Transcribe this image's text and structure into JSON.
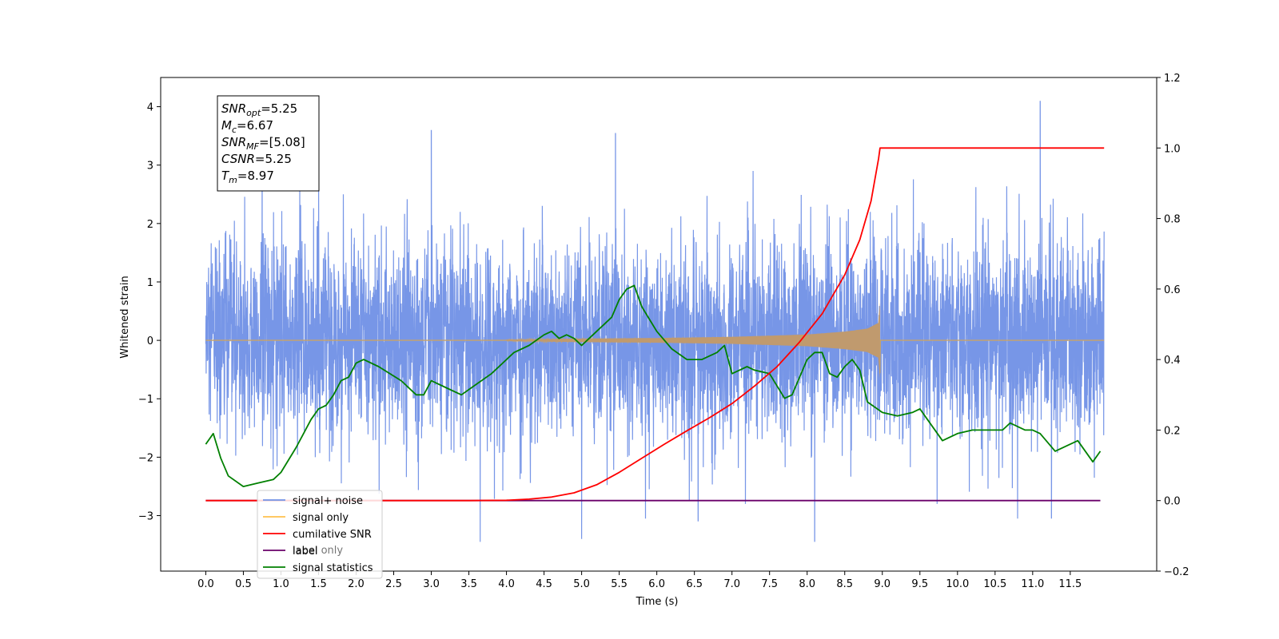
{
  "chart_data": {
    "type": "line",
    "xlabel": "Time (s)",
    "ylabel": "Whitened strain",
    "xlim": [
      -0.6,
      12.65
    ],
    "ylim": [
      -3.95,
      4.5
    ],
    "y2lim": [
      -0.2,
      1.2
    ],
    "grid": false,
    "legend_placement": "lower-left",
    "x_ticks": [
      "0.0",
      "0.5",
      "1.0",
      "1.5",
      "2.0",
      "2.5",
      "3.0",
      "3.5",
      "4.0",
      "4.5",
      "5.0",
      "5.5",
      "6.0",
      "6.5",
      "7.0",
      "7.5",
      "8.0",
      "8.5",
      "9.0",
      "9.5",
      "10.0",
      "10.5",
      "11.0",
      "11.5"
    ],
    "x_tick_values": [
      0,
      0.5,
      1,
      1.5,
      2,
      2.5,
      3,
      3.5,
      4,
      4.5,
      5,
      5.5,
      6,
      6.5,
      7,
      7.5,
      8,
      8.5,
      9,
      9.5,
      10,
      10.5,
      11,
      11.5
    ],
    "y_ticks": [
      "−3",
      "−2",
      "−1",
      "0",
      "1",
      "2",
      "3",
      "4"
    ],
    "y_tick_values": [
      -3,
      -2,
      -1,
      0,
      1,
      2,
      3,
      4
    ],
    "y2_ticks": [
      "−0.2",
      "0.0",
      "0.2",
      "0.4",
      "0.6",
      "0.8",
      "1.0",
      "1.2"
    ],
    "y2_tick_values": [
      -0.2,
      0,
      0.2,
      0.4,
      0.6,
      0.8,
      1.0,
      1.2
    ],
    "legend": [
      {
        "label": "signal+ noise",
        "color": "#7090e6"
      },
      {
        "label": "signal only",
        "color": "#ffc14d"
      },
      {
        "label": "cumilative SNR",
        "color": "#ff0000"
      },
      {
        "label": "label",
        "color": "#6a006a"
      },
      {
        "label": "signal statistics",
        "color": "#008000"
      }
    ],
    "legend_overlap_text": "label only",
    "stats_box": [
      {
        "main": "SNR",
        "sub": "opt",
        "value": "=5.25"
      },
      {
        "main": "M",
        "sub": "c",
        "value": "=6.67"
      },
      {
        "main": "SNR",
        "sub": "MF",
        "value": "=[5.08]"
      },
      {
        "main": "CSNR",
        "sub": "",
        "value": "=5.25"
      },
      {
        "main": "T",
        "sub": "m",
        "value": "=8.97"
      }
    ],
    "series": [
      {
        "name": "signal+ noise",
        "axis": "left",
        "color": "#7090e6",
        "x_range": [
          0,
          11.95
        ],
        "noise_amplitude_sd": 1.0,
        "notable_spikes": [
          [
            0.75,
            2.85
          ],
          [
            1.25,
            2.6
          ],
          [
            3.0,
            3.6
          ],
          [
            5.45,
            3.55
          ],
          [
            11.1,
            4.1
          ],
          [
            3.65,
            -3.45
          ],
          [
            5.0,
            -3.4
          ],
          [
            5.85,
            -3.05
          ],
          [
            6.55,
            -3.1
          ],
          [
            8.1,
            -3.45
          ],
          [
            10.8,
            -3.05
          ],
          [
            11.25,
            -3.05
          ]
        ]
      },
      {
        "name": "signal only",
        "axis": "left",
        "color": "#ffc14d",
        "x_range": [
          0,
          11.95
        ],
        "chirp_start": 4.0,
        "merger_time": 8.97,
        "envelope": [
          [
            4.0,
            0.01
          ],
          [
            5.0,
            0.03
          ],
          [
            6.0,
            0.04
          ],
          [
            7.0,
            0.06
          ],
          [
            8.0,
            0.1
          ],
          [
            8.5,
            0.15
          ],
          [
            8.8,
            0.2
          ],
          [
            8.95,
            0.3
          ],
          [
            8.97,
            0.65
          ]
        ]
      },
      {
        "name": "cumilative SNR",
        "axis": "right",
        "color": "#ff0000",
        "x": [
          0,
          3.5,
          4.0,
          4.3,
          4.6,
          4.9,
          5.2,
          5.5,
          5.8,
          6.1,
          6.4,
          6.7,
          7.0,
          7.3,
          7.6,
          7.9,
          8.2,
          8.5,
          8.7,
          8.85,
          8.95,
          8.97,
          9.0,
          11.95
        ],
        "y": [
          0,
          0,
          0.001,
          0.004,
          0.01,
          0.022,
          0.045,
          0.08,
          0.12,
          0.16,
          0.198,
          0.235,
          0.275,
          0.325,
          0.38,
          0.45,
          0.53,
          0.64,
          0.74,
          0.85,
          0.97,
          1.0,
          1.0,
          1.0
        ]
      },
      {
        "name": "label",
        "axis": "right",
        "color": "#6a006a",
        "x": [
          0,
          11.9
        ],
        "y": [
          0,
          0
        ]
      },
      {
        "name": "signal statistics",
        "axis": "right",
        "color": "#008000",
        "x": [
          0,
          0.1,
          0.2,
          0.3,
          0.5,
          0.7,
          0.9,
          1.0,
          1.2,
          1.4,
          1.5,
          1.6,
          1.7,
          1.8,
          1.9,
          2.0,
          2.1,
          2.3,
          2.6,
          2.8,
          2.9,
          3.0,
          3.2,
          3.4,
          3.6,
          3.8,
          4.0,
          4.1,
          4.3,
          4.5,
          4.6,
          4.7,
          4.8,
          4.9,
          5.0,
          5.1,
          5.2,
          5.4,
          5.5,
          5.6,
          5.7,
          5.8,
          6.0,
          6.2,
          6.4,
          6.6,
          6.8,
          6.9,
          7.0,
          7.1,
          7.2,
          7.3,
          7.5,
          7.7,
          7.8,
          7.9,
          8.0,
          8.1,
          8.2,
          8.3,
          8.4,
          8.5,
          8.6,
          8.7,
          8.8,
          9.0,
          9.2,
          9.4,
          9.5,
          9.6,
          9.8,
          10.0,
          10.2,
          10.4,
          10.6,
          10.7,
          10.9,
          11.0,
          11.1,
          11.3,
          11.5,
          11.6,
          11.8,
          11.9
        ],
        "y": [
          0.16,
          0.19,
          0.12,
          0.07,
          0.04,
          0.05,
          0.06,
          0.08,
          0.15,
          0.23,
          0.26,
          0.27,
          0.3,
          0.34,
          0.35,
          0.39,
          0.4,
          0.38,
          0.34,
          0.3,
          0.3,
          0.34,
          0.32,
          0.3,
          0.33,
          0.36,
          0.4,
          0.42,
          0.44,
          0.47,
          0.48,
          0.46,
          0.47,
          0.46,
          0.44,
          0.46,
          0.48,
          0.52,
          0.57,
          0.6,
          0.61,
          0.55,
          0.48,
          0.43,
          0.4,
          0.4,
          0.42,
          0.44,
          0.36,
          0.37,
          0.38,
          0.37,
          0.36,
          0.29,
          0.3,
          0.35,
          0.4,
          0.42,
          0.42,
          0.36,
          0.35,
          0.38,
          0.4,
          0.37,
          0.28,
          0.25,
          0.24,
          0.25,
          0.26,
          0.23,
          0.17,
          0.19,
          0.2,
          0.2,
          0.2,
          0.22,
          0.2,
          0.2,
          0.19,
          0.14,
          0.16,
          0.17,
          0.11,
          0.14
        ]
      }
    ]
  }
}
